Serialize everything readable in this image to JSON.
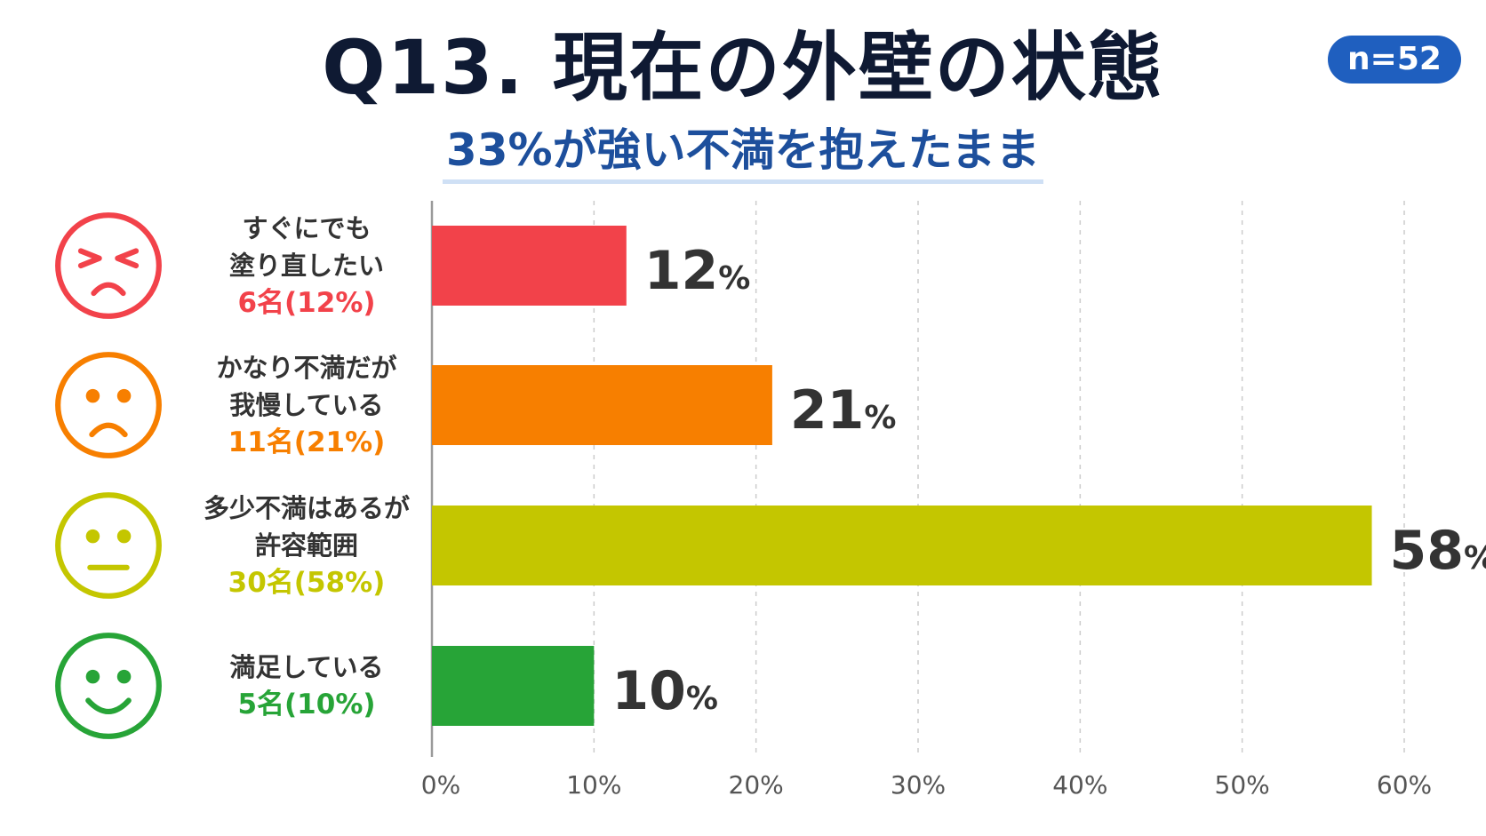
{
  "title": "Q13. 現在の外壁の状態",
  "badge": "n=52",
  "subtitle": "33%が強い不満を抱えたまま",
  "colors": {
    "title": "#0f1a33",
    "badge": "#1f5fbf",
    "subtitle": "#1d4f9c",
    "axis": "#9a9a9a",
    "grid": "#cccccc",
    "value_text": "#333333"
  },
  "rows": [
    {
      "face": "angry-face-icon",
      "label_lines": [
        "すぐにでも",
        "塗り直したい"
      ],
      "count": "6名(12%)",
      "value_number": "12",
      "value_unit": "%",
      "color": "#f2424a"
    },
    {
      "face": "sad-face-icon",
      "label_lines": [
        "かなり不満だが",
        "我慢している"
      ],
      "count": "11名(21%)",
      "value_number": "21",
      "value_unit": "%",
      "color": "#f77f00"
    },
    {
      "face": "neutral-face-icon",
      "label_lines": [
        "多少不満はあるが",
        "許容範囲"
      ],
      "count": "30名(58%)",
      "value_number": "58",
      "value_unit": "%",
      "color": "#c4c600"
    },
    {
      "face": "smile-face-icon",
      "label_lines": [
        "満足している"
      ],
      "count": "5名(10%)",
      "value_number": "10",
      "value_unit": "%",
      "color": "#27a437"
    }
  ],
  "chart_data": {
    "type": "bar",
    "orientation": "horizontal",
    "categories": [
      "すぐにでも塗り直したい",
      "かなり不満だが我慢している",
      "多少不満はあるが許容範囲",
      "満足している"
    ],
    "values": [
      12,
      21,
      58,
      10
    ],
    "xlim": [
      0,
      60
    ],
    "x_ticks": [
      0,
      10,
      20,
      30,
      40,
      50,
      60
    ],
    "x_tick_labels": [
      "0%",
      "10%",
      "20%",
      "30%",
      "40%",
      "50%",
      "60%"
    ],
    "grid": true,
    "colors": [
      "#f2424a",
      "#f77f00",
      "#c4c600",
      "#27a437"
    ]
  }
}
